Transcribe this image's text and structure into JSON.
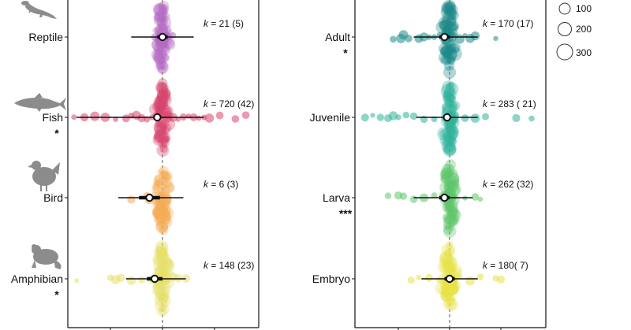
{
  "chart_data": [
    {
      "type": "scatter",
      "subtype": "orchard-plot",
      "title": "",
      "xlabel": "",
      "ylabel": "",
      "reference_line": 0,
      "groups": [
        {
          "label": "Reptile",
          "significance": "",
          "k_label": "= 21 (5)",
          "icon": "lizard-icon",
          "color": "#b46bc2",
          "estimate": 0.0,
          "ci": [
            -0.1,
            0.1
          ],
          "pi": [
            -0.6,
            0.6
          ],
          "points": [
            0.0,
            0.0,
            0.05,
            -0.05,
            0.1,
            0.0,
            -0.15,
            0.0,
            0.0,
            0.05,
            0.2,
            0.0,
            0.0,
            -0.05,
            0.1,
            0.0,
            0.0,
            0.0,
            -0.1,
            0.0,
            0.0
          ]
        },
        {
          "label": "Fish",
          "significance": "*",
          "k_label": "= 720  (42)",
          "icon": "fish-icon",
          "color": "#d8466e",
          "estimate": -0.1,
          "ci": [
            -0.15,
            -0.05
          ],
          "pi": [
            -1.65,
            0.8
          ],
          "points": [
            -1.7,
            -1.5,
            -1.3,
            -1.1,
            -0.9,
            -0.7,
            -0.5,
            -0.4,
            -0.3,
            -0.2,
            -0.1,
            0.0,
            0.1,
            0.2,
            0.3,
            0.4,
            0.5,
            0.6,
            0.8,
            0.9,
            1.1,
            1.4,
            1.6,
            -0.6,
            0.7
          ]
        },
        {
          "label": "Bird",
          "significance": "",
          "k_label": "= 6  (3)",
          "icon": "bird-icon",
          "color": "#f4ac55",
          "estimate": -0.25,
          "ci": [
            -0.45,
            -0.05
          ],
          "pi": [
            -0.85,
            0.4
          ],
          "points": [
            -0.6,
            -0.3,
            -0.1,
            0.0,
            -0.2,
            -0.25
          ]
        },
        {
          "label": "Amphibian",
          "significance": "*",
          "k_label": "= 148  (23)",
          "icon": "frog-icon",
          "color": "#e6e06a",
          "estimate": -0.15,
          "ci": [
            -0.3,
            0.0
          ],
          "pi": [
            -0.7,
            0.45
          ],
          "points": [
            -1.65,
            -1.0,
            -0.9,
            -0.8,
            -0.6,
            -0.4,
            -0.2,
            0.0,
            0.1,
            0.2,
            0.3,
            0.45,
            -0.1,
            0.05
          ]
        }
      ]
    },
    {
      "type": "scatter",
      "subtype": "orchard-plot",
      "title": "",
      "xlabel": "",
      "ylabel": "",
      "reference_line": 0,
      "groups": [
        {
          "label": "Adult",
          "significance": "*",
          "k_label": "= 170  (17)",
          "color": "#1d8a8a",
          "estimate": -0.1,
          "ci": [
            -0.2,
            0.0
          ],
          "pi": [
            -0.7,
            0.55
          ],
          "points": [
            -1.1,
            -0.95,
            -0.9,
            -0.8,
            -0.6,
            -0.5,
            -0.4,
            -0.3,
            -0.2,
            -0.1,
            0.0,
            0.1,
            0.2,
            0.3,
            0.4,
            0.5,
            0.9
          ]
        },
        {
          "label": "Juvenile",
          "significance": "",
          "k_label": "= 283  ( 21)",
          "color": "#30b29a",
          "estimate": -0.05,
          "ci": [
            -0.12,
            0.02
          ],
          "pi": [
            -0.65,
            0.55
          ],
          "points": [
            -1.65,
            -1.5,
            -1.35,
            -1.2,
            -1.1,
            -1.0,
            -0.85,
            -0.7,
            -0.5,
            -0.3,
            -0.1,
            0.1,
            0.3,
            0.5,
            0.7,
            1.3,
            1.6
          ]
        },
        {
          "label": "Larva",
          "significance": "***",
          "k_label": "= 262  (32)",
          "color": "#5ec66a",
          "estimate": -0.1,
          "ci": [
            -0.2,
            0.0
          ],
          "pi": [
            -0.7,
            0.45
          ],
          "points": [
            -1.2,
            -1.0,
            -0.9,
            -0.7,
            -0.5,
            -0.3,
            -0.1,
            0.1,
            0.3,
            0.5,
            0.6
          ]
        },
        {
          "label": "Embryo",
          "significance": "",
          "k_label": "= 180( 7)",
          "color": "#e8e248",
          "estimate": 0.0,
          "ci": [
            -0.1,
            0.1
          ],
          "pi": [
            -0.55,
            0.55
          ],
          "points": [
            -0.75,
            -0.6,
            -0.4,
            -0.2,
            0.0,
            0.2,
            0.4,
            0.6,
            0.9,
            1.0
          ]
        }
      ]
    }
  ],
  "legend": {
    "position": "top-right",
    "sizes": [
      "100",
      "200",
      "300"
    ],
    "k_prefix": "k"
  }
}
